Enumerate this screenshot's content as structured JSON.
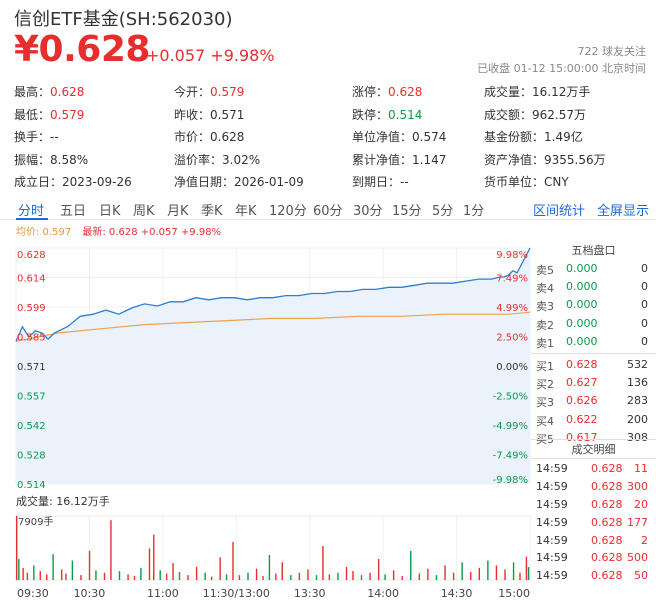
{
  "header": {
    "title": "信创ETF基金(SH:562030)",
    "price": "¥0.628",
    "change": "+0.057 +9.98%",
    "follow": "722  球友关注",
    "status": "已收盘 01-12 15:00:00 北京时间"
  },
  "stats": [
    [
      {
        "label": "最高：",
        "value": "0.628",
        "color": "red"
      },
      {
        "label": "今开：",
        "value": "0.579",
        "color": "red"
      },
      {
        "label": "涨停：",
        "value": "0.628",
        "color": "red"
      },
      {
        "label": "成交量：",
        "value": "16.12万手",
        "color": ""
      }
    ],
    [
      {
        "label": "最低：",
        "value": "0.579",
        "color": "red"
      },
      {
        "label": "昨收：",
        "value": "0.571",
        "color": ""
      },
      {
        "label": "跌停：",
        "value": "0.514",
        "color": "green"
      },
      {
        "label": "成交额：",
        "value": "962.57万",
        "color": ""
      }
    ],
    [
      {
        "label": "换手：",
        "value": "--",
        "color": ""
      },
      {
        "label": "市价：",
        "value": "0.628",
        "color": ""
      },
      {
        "label": "单位净值：",
        "value": "0.574",
        "color": ""
      },
      {
        "label": "基金份额：",
        "value": "1.49亿",
        "color": ""
      }
    ],
    [
      {
        "label": "振幅：",
        "value": "8.58%",
        "color": ""
      },
      {
        "label": "溢价率：",
        "value": "3.02%",
        "color": ""
      },
      {
        "label": "累计净值：",
        "value": "1.147",
        "color": ""
      },
      {
        "label": "资产净值：",
        "value": "9355.56万",
        "color": ""
      }
    ],
    [
      {
        "label": "成立日：",
        "value": "2023-09-26",
        "color": ""
      },
      {
        "label": "净值日期：",
        "value": "2026-01-09",
        "color": ""
      },
      {
        "label": "到期日：",
        "value": "--",
        "color": ""
      },
      {
        "label": "货币单位：",
        "value": "CNY",
        "color": ""
      }
    ]
  ],
  "tabs": [
    "分时",
    "五日",
    "日K",
    "周K",
    "月K",
    "季K",
    "年K",
    "120分",
    "60分",
    "30分",
    "15分",
    "5分",
    "1分"
  ],
  "tabs_right": [
    "区间统计",
    "全屏显示"
  ],
  "legend": {
    "avg": "均价: 0.597",
    "latest": "最新: 0.628 +0.057 +9.98%"
  },
  "order_book": {
    "title": "五档盘口",
    "sells": [
      {
        "name": "卖5",
        "price": "0.000",
        "vol": "0"
      },
      {
        "name": "卖4",
        "price": "0.000",
        "vol": "0"
      },
      {
        "name": "卖3",
        "price": "0.000",
        "vol": "0"
      },
      {
        "name": "卖2",
        "price": "0.000",
        "vol": "0"
      },
      {
        "name": "卖1",
        "price": "0.000",
        "vol": "0"
      }
    ],
    "buys": [
      {
        "name": "买1",
        "price": "0.628",
        "vol": "532"
      },
      {
        "name": "买2",
        "price": "0.627",
        "vol": "136"
      },
      {
        "name": "买3",
        "price": "0.626",
        "vol": "283"
      },
      {
        "name": "买4",
        "price": "0.622",
        "vol": "200"
      },
      {
        "name": "买5",
        "price": "0.617",
        "vol": "308"
      }
    ]
  },
  "trades": {
    "title": "成交明细",
    "rows": [
      {
        "time": "14:59",
        "price": "0.628",
        "vol": "11"
      },
      {
        "time": "14:59",
        "price": "0.628",
        "vol": "300"
      },
      {
        "time": "14:59",
        "price": "0.628",
        "vol": "20"
      },
      {
        "time": "14:59",
        "price": "0.628",
        "vol": "177"
      },
      {
        "time": "14:59",
        "price": "0.628",
        "vol": "2"
      },
      {
        "time": "14:59",
        "price": "0.628",
        "vol": "500"
      },
      {
        "time": "14:59",
        "price": "0.628",
        "vol": "50"
      }
    ]
  },
  "volume": {
    "label": "成交量: 16.12万手",
    "max_label": "7909手"
  },
  "colors": {
    "up": "#e62e2e",
    "down": "#0a9a4a",
    "price_line": "#2a7fd4",
    "avg_line": "#f0a24a",
    "accent": "#1f6ad6"
  },
  "chart_data": {
    "type": "line",
    "prev_close": 0.571,
    "ylim": [
      0.514,
      0.628
    ],
    "y_ticks": [
      "0.628",
      "0.614",
      "0.599",
      "0.585",
      "0.571",
      "0.557",
      "0.542",
      "0.528",
      "0.514"
    ],
    "pct_ticks": [
      "9.98%",
      "7.49%",
      "4.99%",
      "2.50%",
      "0.00%",
      "-2.50%",
      "-4.99%",
      "-7.49%",
      "-9.98%"
    ],
    "x_ticks": [
      "09:30",
      "10:30",
      "11:00",
      "11:30/13:00",
      "13:30",
      "14:00",
      "14:30",
      "15:00"
    ],
    "series": [
      {
        "name": "最新",
        "x": [
          0,
          3,
          6,
          9,
          12,
          15,
          18,
          24,
          30,
          36,
          42,
          48,
          54,
          60,
          66,
          72,
          78,
          84,
          90,
          96,
          102,
          108,
          114,
          120,
          126,
          132,
          138,
          144,
          150,
          156,
          162,
          168,
          174,
          180,
          186,
          192,
          198,
          204,
          210,
          216,
          222,
          226,
          228,
          230,
          232,
          234,
          236,
          238,
          240
        ],
        "values": [
          0.583,
          0.59,
          0.585,
          0.588,
          0.587,
          0.584,
          0.587,
          0.59,
          0.595,
          0.596,
          0.598,
          0.596,
          0.599,
          0.601,
          0.6,
          0.602,
          0.602,
          0.604,
          0.603,
          0.604,
          0.604,
          0.603,
          0.604,
          0.604,
          0.605,
          0.605,
          0.606,
          0.606,
          0.607,
          0.607,
          0.608,
          0.608,
          0.609,
          0.609,
          0.61,
          0.611,
          0.611,
          0.611,
          0.612,
          0.613,
          0.613,
          0.614,
          0.614,
          0.615,
          0.617,
          0.616,
          0.62,
          0.624,
          0.628
        ]
      },
      {
        "name": "均价",
        "x": [
          0,
          10,
          20,
          40,
          60,
          80,
          100,
          120,
          140,
          160,
          180,
          200,
          220,
          230,
          240
        ],
        "values": [
          0.583,
          0.585,
          0.587,
          0.589,
          0.591,
          0.592,
          0.593,
          0.594,
          0.594,
          0.595,
          0.595,
          0.596,
          0.596,
          0.596,
          0.597
        ]
      }
    ],
    "volume": {
      "ylim": [
        0,
        7909
      ],
      "x": [
        0,
        1,
        3,
        5,
        8,
        11,
        14,
        17,
        21,
        23,
        26,
        30,
        34,
        37,
        41,
        44,
        48,
        52,
        55,
        58,
        62,
        64,
        67,
        70,
        73,
        76,
        80,
        84,
        88,
        91,
        95,
        98,
        101,
        104,
        108,
        112,
        115,
        118,
        121,
        124,
        128,
        132,
        136,
        140,
        143,
        146,
        150,
        154,
        157,
        161,
        165,
        169,
        172,
        176,
        180,
        184,
        188,
        192,
        196,
        200,
        204,
        208,
        212,
        216,
        220,
        224,
        228,
        232,
        235,
        238,
        239
      ],
      "values": [
        7909,
        2600,
        1500,
        900,
        1800,
        1100,
        700,
        3200,
        1300,
        800,
        2400,
        600,
        3600,
        1200,
        900,
        7400,
        1100,
        700,
        500,
        1500,
        3900,
        5600,
        1200,
        800,
        2100,
        1000,
        600,
        1600,
        900,
        400,
        2800,
        700,
        4700,
        600,
        900,
        1400,
        500,
        3100,
        800,
        2200,
        600,
        900,
        1300,
        600,
        4200,
        700,
        900,
        1600,
        1100,
        600,
        900,
        2600,
        700,
        1200,
        500,
        3600,
        800,
        1400,
        600,
        1800,
        900,
        2200,
        1000,
        1500,
        2400,
        1800,
        1300,
        2200,
        900,
        2900,
        1600
      ]
    }
  }
}
